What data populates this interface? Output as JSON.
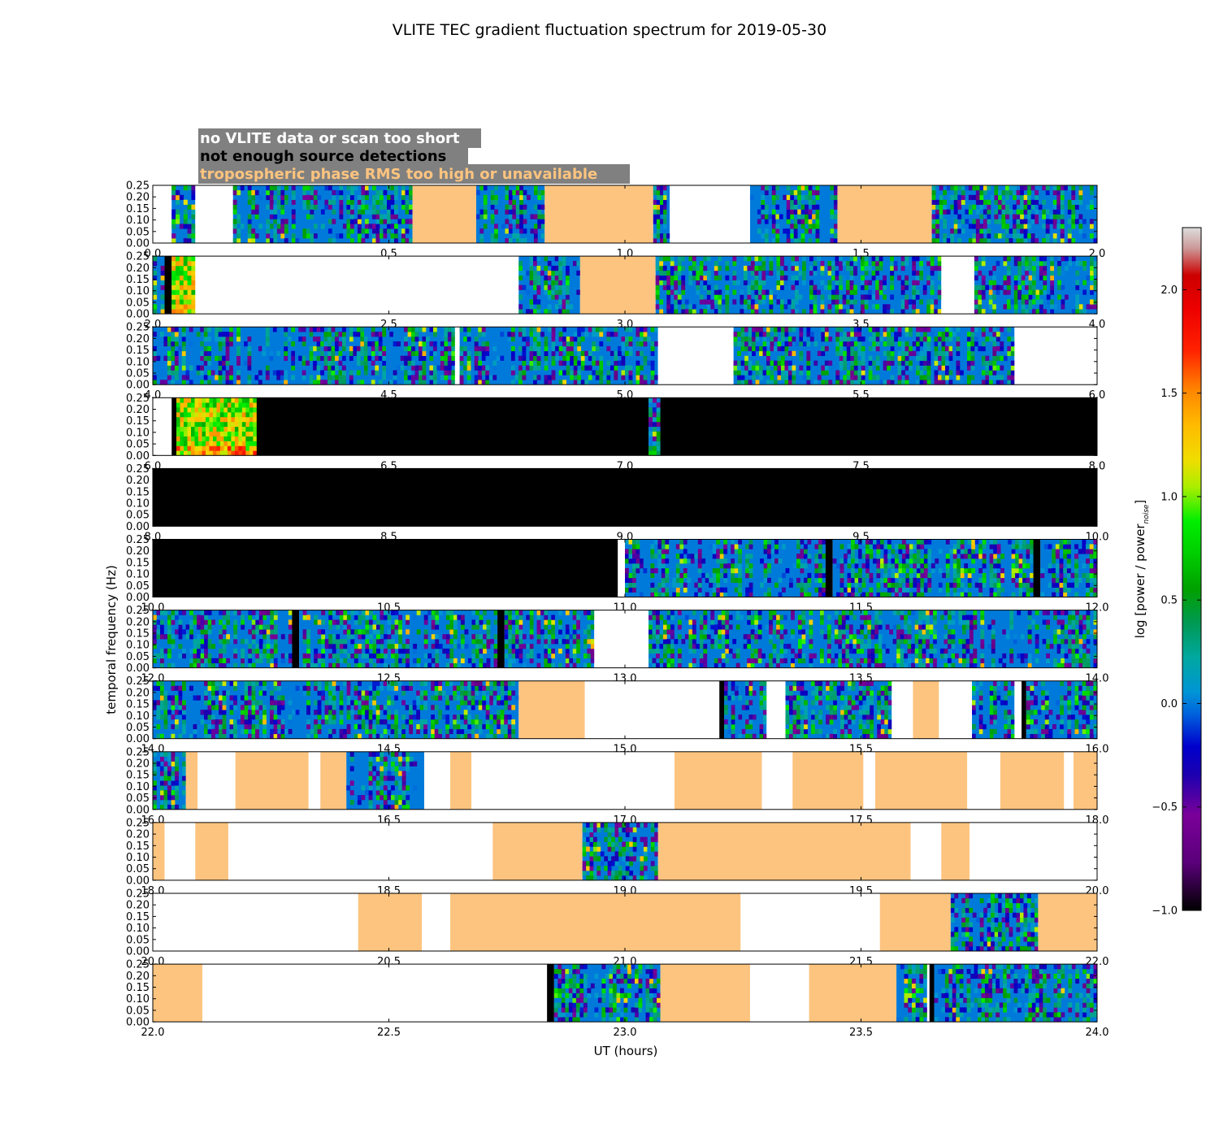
{
  "chart_data": {
    "type": "heatmap",
    "title": "VLITE TEC gradient fluctuation spectrum for 2019-05-30",
    "xlabel": "UT (hours)",
    "ylabel": "temporal frequency (Hz)",
    "ylim": [
      0.0,
      0.25
    ],
    "ytick_labels": [
      "0.00",
      "0.05",
      "0.10",
      "0.15",
      "0.20",
      "0.25"
    ],
    "colorbar": {
      "label_main": "log [power / power",
      "label_sub": "noise",
      "label_end": "]",
      "range": [
        -1.0,
        2.3
      ],
      "tick_labels": [
        "−1.0",
        "−0.5",
        "0.0",
        "0.5",
        "1.0",
        "1.5",
        "2.0"
      ],
      "tick_values": [
        -1.0,
        -0.5,
        0.0,
        0.5,
        1.0,
        1.5,
        2.0
      ]
    },
    "legend": [
      {
        "label": "no VLITE data or scan too short",
        "color": "#ffffff"
      },
      {
        "label": "not enough source detections",
        "color": "#000000"
      },
      {
        "label": "tropospheric phase RMS too high or unavailable",
        "color": "#fdc47f"
      }
    ],
    "panels": [
      {
        "xrange": [
          0,
          2
        ],
        "xtick_labels": [
          "0.0",
          "0.5",
          "1.0",
          "1.5",
          "2.0"
        ],
        "segments": [
          [
            0.0,
            0.04,
            "white"
          ],
          [
            0.04,
            0.09,
            "data"
          ],
          [
            0.09,
            0.17,
            "white"
          ],
          [
            0.17,
            0.55,
            "data"
          ],
          [
            0.55,
            0.685,
            "trop"
          ],
          [
            0.685,
            0.83,
            "data"
          ],
          [
            0.83,
            1.06,
            "trop"
          ],
          [
            1.06,
            1.095,
            "data"
          ],
          [
            1.095,
            1.265,
            "white"
          ],
          [
            1.265,
            1.45,
            "data"
          ],
          [
            1.45,
            1.65,
            "trop"
          ],
          [
            1.65,
            2.0,
            "data"
          ]
        ]
      },
      {
        "xrange": [
          2,
          4
        ],
        "xtick_labels": [
          "2.0",
          "2.5",
          "3.0",
          "3.5",
          "4.0"
        ],
        "segments": [
          [
            2.0,
            2.025,
            "data"
          ],
          [
            2.025,
            2.04,
            "black"
          ],
          [
            2.04,
            2.09,
            "hot"
          ],
          [
            2.09,
            2.775,
            "white"
          ],
          [
            2.775,
            2.905,
            "data"
          ],
          [
            2.905,
            3.065,
            "trop"
          ],
          [
            3.065,
            3.67,
            "data"
          ],
          [
            3.67,
            3.74,
            "white"
          ],
          [
            3.74,
            4.0,
            "data"
          ]
        ]
      },
      {
        "xrange": [
          4,
          6
        ],
        "xtick_labels": [
          "4.0",
          "4.5",
          "5.0",
          "5.5",
          "6.0"
        ],
        "segments": [
          [
            4.0,
            4.64,
            "data"
          ],
          [
            4.64,
            4.65,
            "white"
          ],
          [
            4.65,
            5.07,
            "data"
          ],
          [
            5.07,
            5.23,
            "white"
          ],
          [
            5.23,
            5.825,
            "data"
          ],
          [
            5.825,
            6.0,
            "white"
          ]
        ]
      },
      {
        "xrange": [
          6,
          8
        ],
        "xtick_labels": [
          "6.0",
          "6.5",
          "7.0",
          "7.5",
          "8.0"
        ],
        "segments": [
          [
            6.0,
            6.04,
            "white"
          ],
          [
            6.04,
            6.05,
            "black"
          ],
          [
            6.05,
            6.22,
            "hot"
          ],
          [
            6.22,
            7.05,
            "black"
          ],
          [
            7.05,
            7.075,
            "data"
          ],
          [
            7.075,
            8.0,
            "black"
          ]
        ]
      },
      {
        "xrange": [
          8,
          10
        ],
        "xtick_labels": [
          "8.0",
          "8.5",
          "9.0",
          "9.5",
          "10.0"
        ],
        "segments": [
          [
            8.0,
            10.0,
            "black"
          ]
        ]
      },
      {
        "xrange": [
          10,
          12
        ],
        "xtick_labels": [
          "10.0",
          "10.5",
          "11.0",
          "11.5",
          "12.0"
        ],
        "segments": [
          [
            10.0,
            10.985,
            "black"
          ],
          [
            10.985,
            11.0,
            "white"
          ],
          [
            11.0,
            11.425,
            "data"
          ],
          [
            11.425,
            11.44,
            "black"
          ],
          [
            11.44,
            11.865,
            "data"
          ],
          [
            11.865,
            11.88,
            "black"
          ],
          [
            11.88,
            12.0,
            "data"
          ]
        ]
      },
      {
        "xrange": [
          12,
          14
        ],
        "xtick_labels": [
          "12.0",
          "12.5",
          "13.0",
          "13.5",
          "14.0"
        ],
        "segments": [
          [
            12.0,
            12.295,
            "data"
          ],
          [
            12.295,
            12.31,
            "black"
          ],
          [
            12.31,
            12.73,
            "data"
          ],
          [
            12.73,
            12.745,
            "black"
          ],
          [
            12.745,
            12.935,
            "data"
          ],
          [
            12.935,
            13.05,
            "white"
          ],
          [
            13.05,
            14.0,
            "data"
          ]
        ]
      },
      {
        "xrange": [
          14,
          16
        ],
        "xtick_labels": [
          "14.0",
          "14.5",
          "15.0",
          "15.5",
          "16.0"
        ],
        "segments": [
          [
            14.0,
            14.775,
            "data"
          ],
          [
            14.775,
            14.915,
            "trop"
          ],
          [
            14.915,
            15.2,
            "white"
          ],
          [
            15.2,
            15.21,
            "black"
          ],
          [
            15.21,
            15.3,
            "data"
          ],
          [
            15.3,
            15.34,
            "white"
          ],
          [
            15.34,
            15.565,
            "data"
          ],
          [
            15.565,
            15.61,
            "white"
          ],
          [
            15.61,
            15.665,
            "trop"
          ],
          [
            15.665,
            15.735,
            "white"
          ],
          [
            15.735,
            15.825,
            "data"
          ],
          [
            15.825,
            15.84,
            "white"
          ],
          [
            15.84,
            15.85,
            "black"
          ],
          [
            15.85,
            16.0,
            "data"
          ]
        ]
      },
      {
        "xrange": [
          16,
          18
        ],
        "xtick_labels": [
          "16.0",
          "16.5",
          "17.0",
          "17.5",
          "18.0"
        ],
        "segments": [
          [
            16.0,
            16.07,
            "data"
          ],
          [
            16.07,
            16.095,
            "trop"
          ],
          [
            16.095,
            16.175,
            "white"
          ],
          [
            16.175,
            16.33,
            "trop"
          ],
          [
            16.33,
            16.355,
            "white"
          ],
          [
            16.355,
            16.41,
            "trop"
          ],
          [
            16.41,
            16.575,
            "data"
          ],
          [
            16.575,
            16.63,
            "white"
          ],
          [
            16.63,
            16.675,
            "trop"
          ],
          [
            16.675,
            17.105,
            "white"
          ],
          [
            17.105,
            17.29,
            "trop"
          ],
          [
            17.29,
            17.355,
            "white"
          ],
          [
            17.355,
            17.505,
            "trop"
          ],
          [
            17.505,
            17.53,
            "white"
          ],
          [
            17.53,
            17.725,
            "trop"
          ],
          [
            17.725,
            17.795,
            "white"
          ],
          [
            17.795,
            17.93,
            "trop"
          ],
          [
            17.93,
            17.95,
            "white"
          ],
          [
            17.95,
            18.0,
            "trop"
          ]
        ]
      },
      {
        "xrange": [
          18,
          20
        ],
        "xtick_labels": [
          "18.0",
          "18.5",
          "19.0",
          "19.5",
          "20.0"
        ],
        "segments": [
          [
            18.0,
            18.025,
            "trop"
          ],
          [
            18.025,
            18.09,
            "white"
          ],
          [
            18.09,
            18.16,
            "trop"
          ],
          [
            18.16,
            18.72,
            "white"
          ],
          [
            18.72,
            18.91,
            "trop"
          ],
          [
            18.91,
            19.07,
            "data"
          ],
          [
            19.07,
            19.605,
            "trop"
          ],
          [
            19.605,
            19.67,
            "white"
          ],
          [
            19.67,
            19.73,
            "trop"
          ],
          [
            19.73,
            20.0,
            "white"
          ]
        ]
      },
      {
        "xrange": [
          20,
          22
        ],
        "xtick_labels": [
          "20.0",
          "20.5",
          "21.0",
          "21.5",
          "22.0"
        ],
        "segments": [
          [
            20.0,
            20.435,
            "white"
          ],
          [
            20.435,
            20.57,
            "trop"
          ],
          [
            20.57,
            20.63,
            "white"
          ],
          [
            20.63,
            21.245,
            "trop"
          ],
          [
            21.245,
            21.54,
            "white"
          ],
          [
            21.54,
            21.69,
            "trop"
          ],
          [
            21.69,
            21.875,
            "data"
          ],
          [
            21.875,
            22.0,
            "trop"
          ]
        ]
      },
      {
        "xrange": [
          22,
          24
        ],
        "xtick_labels": [
          "22.0",
          "22.5",
          "23.0",
          "23.5",
          "24.0"
        ],
        "segments": [
          [
            22.0,
            22.105,
            "trop"
          ],
          [
            22.105,
            22.835,
            "white"
          ],
          [
            22.835,
            22.85,
            "black"
          ],
          [
            22.85,
            23.075,
            "data"
          ],
          [
            23.075,
            23.265,
            "trop"
          ],
          [
            23.265,
            23.39,
            "white"
          ],
          [
            23.39,
            23.575,
            "trop"
          ],
          [
            23.575,
            23.64,
            "data"
          ],
          [
            23.64,
            23.645,
            "white"
          ],
          [
            23.645,
            23.655,
            "black"
          ],
          [
            23.655,
            24.0,
            "data"
          ]
        ]
      }
    ]
  }
}
